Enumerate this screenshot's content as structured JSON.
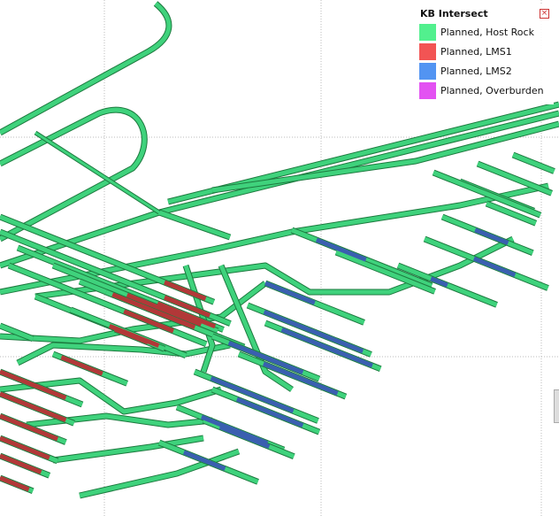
{
  "legend": {
    "title": "KB Intersect",
    "items": [
      {
        "label": "Planned, Host Rock",
        "color": "#52f08e"
      },
      {
        "label": "Planned, LMS1",
        "color": "#f25454"
      },
      {
        "label": "Planned, LMS2",
        "color": "#5294f2"
      },
      {
        "label": "Planned, Overburden",
        "color": "#e352f2"
      }
    ]
  }
}
